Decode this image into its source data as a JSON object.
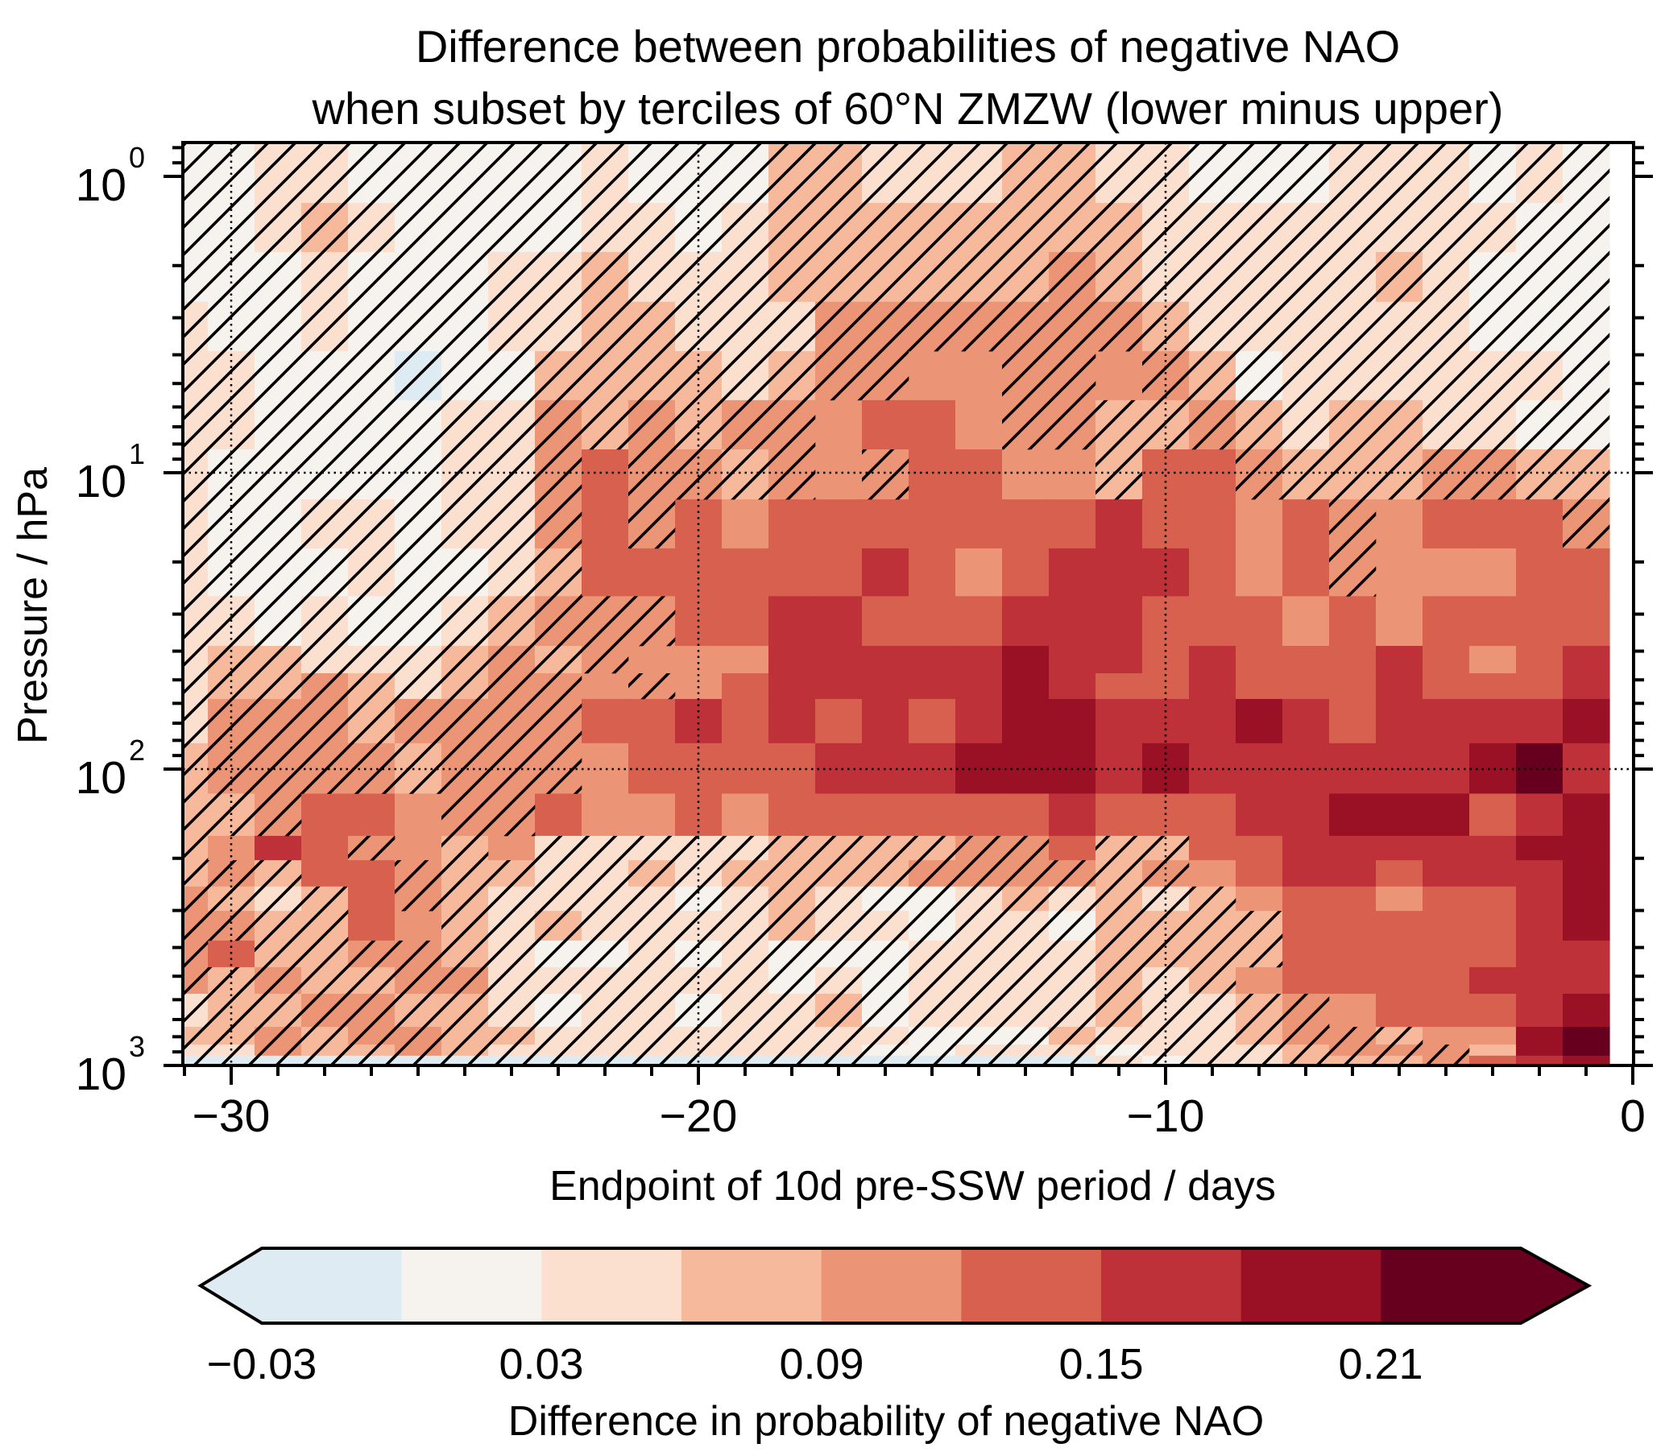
{
  "chart_data": {
    "type": "heatmap",
    "title": [
      "Difference between probabilities of negative NAO",
      "when subset by terciles of 60°N ZMZW (lower minus upper)"
    ],
    "xlabel": "Endpoint of 10d pre-SSW period / days",
    "ylabel": "Pressure / hPa",
    "xlim": [
      -31,
      0
    ],
    "ylim_hPa": [
      1000,
      0.77
    ],
    "yscale": "log",
    "grid": "dotted at major ticks",
    "xticks": {
      "values": [
        -30,
        -20,
        -10,
        0
      ],
      "labels": [
        "−30",
        "−20",
        "−10",
        "0"
      ]
    },
    "yticks": {
      "values": [
        1,
        10,
        100,
        1000
      ],
      "base": "10",
      "exponents": [
        "0",
        "1",
        "2",
        "3"
      ]
    },
    "x_centers_days": [
      -31,
      -30,
      -29,
      -28,
      -27,
      -26,
      -25,
      -24,
      -23,
      -22,
      -21,
      -20,
      -19,
      -18,
      -17,
      -16,
      -15,
      -14,
      -13,
      -12,
      -11,
      -10,
      -9,
      -8,
      -7,
      -6,
      -5,
      -4,
      -3,
      -2,
      -1
    ],
    "p_edges_hPa": [
      0.77,
      1.23,
      1.8,
      2.65,
      3.89,
      5.69,
      8.34,
      12.3,
      18.0,
      26.1,
      38.4,
      47.5,
      58.0,
      81.8,
      121,
      168,
      203,
      249,
      301,
      379,
      466,
      573,
      741,
      850,
      927,
      1000
    ],
    "bin_codes_legend": {
      "b": [
        -0.03,
        0.0
      ],
      "0": [
        0.0,
        0.03
      ],
      "1": [
        0.03,
        0.06
      ],
      "2": [
        0.06,
        0.09
      ],
      "3": [
        0.09,
        0.12
      ],
      "4": [
        0.12,
        0.15
      ],
      "5": [
        0.15,
        0.18
      ],
      "6": [
        0.18,
        0.21
      ],
      "7": [
        0.21,
        0.24
      ]
    },
    "z_bins_rows_top_to_bottom": [
      "0011000001000221112211000111010",
      "0012100001101222222221111111100",
      "0001000112111222222321111121000",
      "1001000112211133333332111111000",
      "11000b0022221233333333201111110",
      "1100001132323334433322321221100",
      "1000001134332333443324432223322",
      "1001101134343444444454434334443",
      "1000100124444445434555434333344",
      "1101001233344554445554443434444",
      "1221112323333555556554544454345",
      "1223212333334555556544544454445",
      "1333233334454545456655565455556",
      "2333323333444455566656555555675",
      "2234433343343444444544455666456",
      "2354332311111222233422445555566",
      "2324432211212222333323345545556",
      "3212432111101210012121234434456",
      "3322432121111211011022224444456",
      "3422332100101000111122224444455",
      "3232233111111010111121234444555",
      "1223322101101120111121123344456",
      "2232332211111111000211123323367",
      "1132232111111110011101112333267",
      "bbbbbbbbbbbbbbbbbbbb10112223456"
    ],
    "not_significant_hatched_rows": [
      "1111111111111111111111111111111",
      "1111111111111111111111111111111",
      "1111111111111111111111111111111",
      "1111111111111111111111111111111",
      "1111111111111111001101111111111",
      "1111111111111100001111111111111",
      "1111111110111101000010011111111",
      "1111111110100000000000000100001",
      "1111111110000000000000000100000",
      "1111111111100000000000000000000",
      "1111111111000000000000000000000",
      "1111111110100000000000000000000",
      "1111111110000000000000000000000",
      "1111111110000000000000000000000",
      "1110001100000000000000000000000",
      "1000101011111111111011000000000",
      "1110011111111111111111000000000",
      "1111011111111111111111100000000",
      "1111001111111111111111110000000",
      "1011111111111111111111110000000",
      "1111111111111111111111100000000",
      "1111111111111111111111111000000",
      "1111111111111111111111111110000",
      "1111111111111111111111111111000",
      "1111111111111111111111111111000"
    ],
    "colorbar": {
      "label": "Difference in probability of negative NAO",
      "levels": [
        -0.03,
        0.0,
        0.03,
        0.06,
        0.09,
        0.12,
        0.15,
        0.18,
        0.21,
        0.24
      ],
      "extend": "both",
      "tick_values": [
        -0.03,
        0.03,
        0.09,
        0.15,
        0.21
      ],
      "tick_labels": [
        "−0.03",
        "0.03",
        "0.09",
        "0.15",
        "0.21"
      ],
      "colors": {
        "b": "#deebf2",
        "0": "#f6f2ee",
        "1": "#fbdfcf",
        "2": "#f6b99c",
        "3": "#ec9476",
        "4": "#d8604f",
        "5": "#be3139",
        "6": "#9a1025",
        "7": "#67001f"
      },
      "extend_low_color": "#deebf2",
      "extend_high_color": "#67001f"
    }
  }
}
